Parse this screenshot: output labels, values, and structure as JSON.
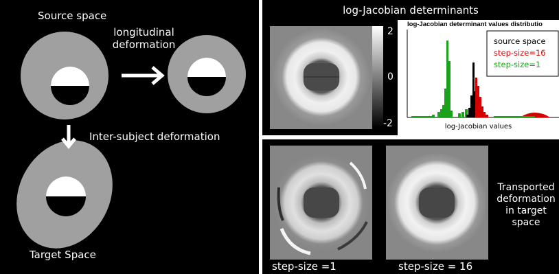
{
  "left": {
    "source_label": "Source space",
    "longitudinal_label_line1": "longitudinal",
    "longitudinal_label_line2": "deformation",
    "intersubject_label": "Inter-subject deformation",
    "target_label": "Target Space"
  },
  "top_right": {
    "title": "log-Jacobian determinants",
    "colorbar_ticks": [
      "2",
      "0",
      "-2"
    ],
    "histogram": {
      "title": "log-Jacobian determinant values distributio",
      "xlabel": "log-Jacobian values",
      "legend": [
        {
          "name": "source space",
          "color": "#000000"
        },
        {
          "name": "step-size=16",
          "color": "#d40000"
        },
        {
          "name": "step-size=1",
          "color": "#1aa31a"
        }
      ]
    }
  },
  "bottom_right": {
    "caption_left": "step-size =1",
    "caption_right": "step-size = 16",
    "side_label_lines": [
      "Transported",
      "deformation",
      "in target",
      "space"
    ]
  },
  "colors": {
    "background": "#000000",
    "gray_shape": "#a0a0a0",
    "white": "#ffffff",
    "source_series": "#000000",
    "step16_series": "#d40000",
    "step1_series": "#1aa31a"
  }
}
